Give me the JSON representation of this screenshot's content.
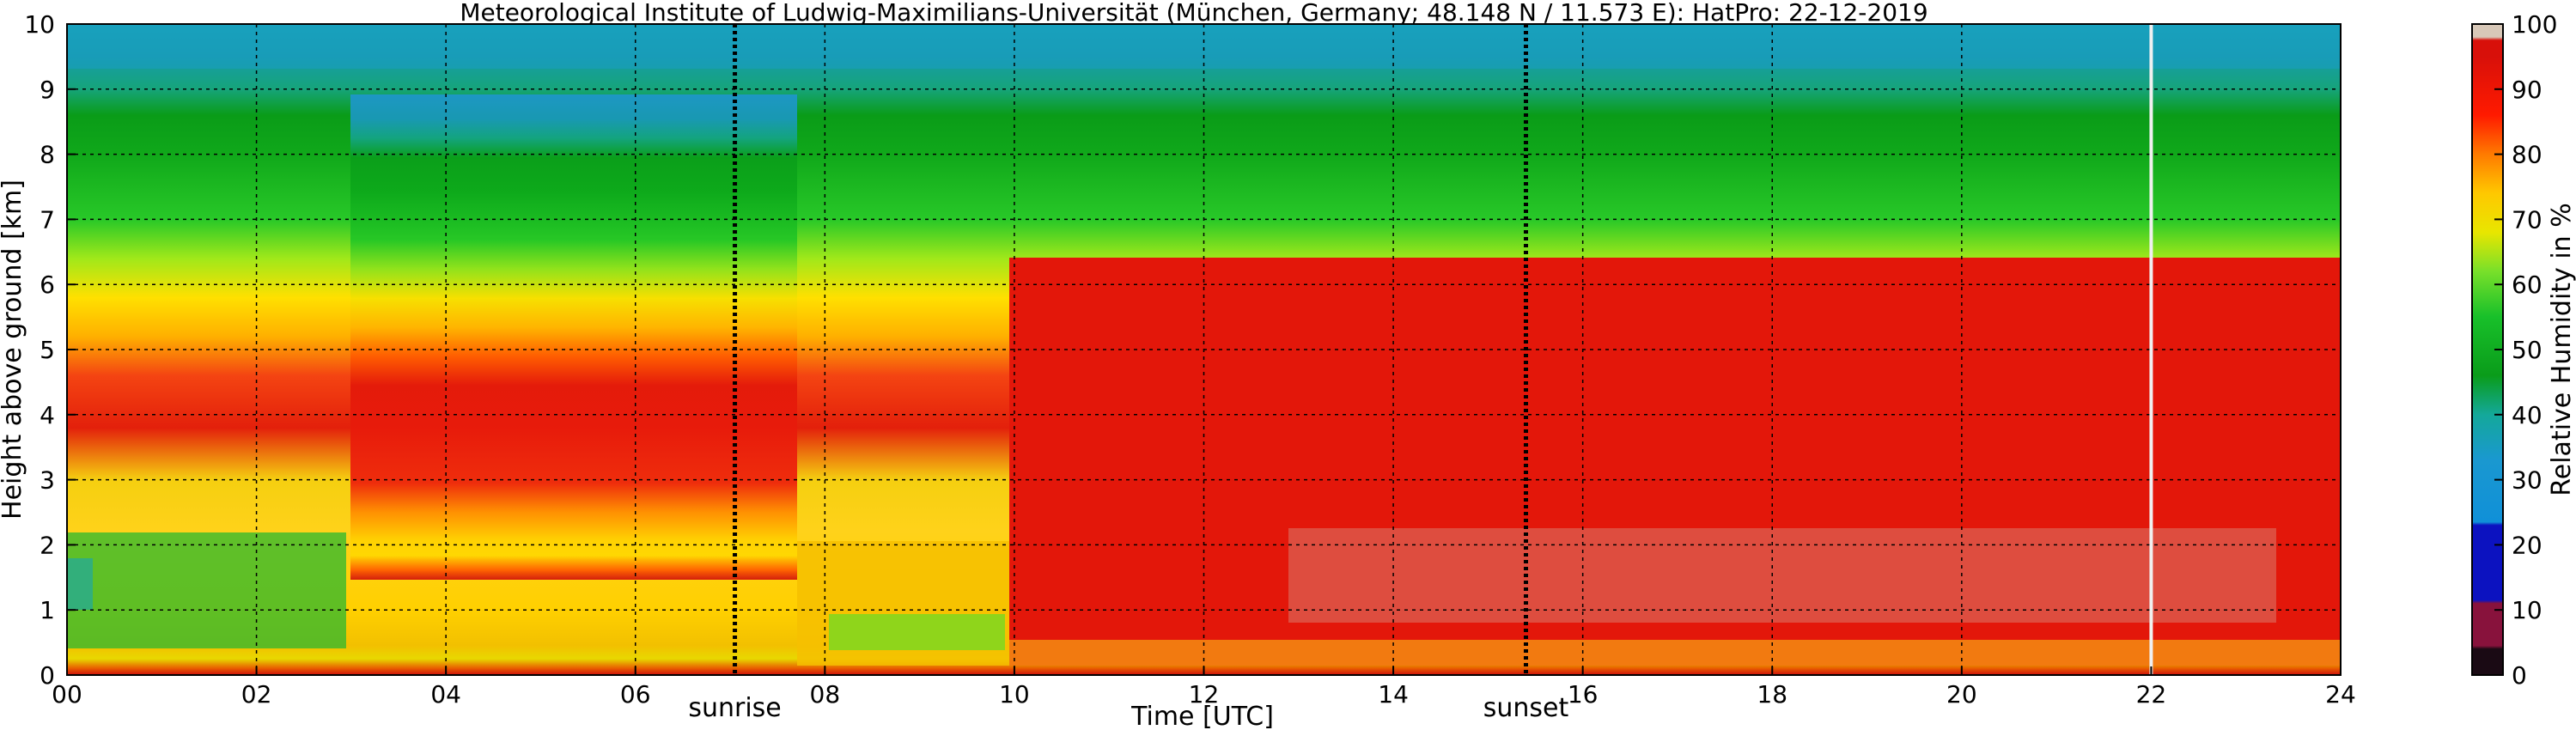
{
  "chart_data": {
    "type": "heatmap",
    "title": "Meteorological Institute of Ludwig-Maximilians-Universität (München, Germany; 48.148 N / 11.573 E):    HatPro: 22-12-2019",
    "xlabel": "Time [UTC]",
    "ylabel": "Height above ground [km]",
    "xlim": [
      0,
      24
    ],
    "ylim": [
      0,
      10
    ],
    "x_ticks": [
      "00",
      "02",
      "04",
      "06",
      "08",
      "10",
      "12",
      "14",
      "16",
      "18",
      "20",
      "22",
      "24"
    ],
    "y_ticks": [
      "0",
      "1",
      "2",
      "3",
      "4",
      "5",
      "6",
      "7",
      "8",
      "9",
      "10"
    ],
    "grid": true,
    "annotations": [
      {
        "label": "sunrise",
        "x": 7.05
      },
      {
        "label": "sunset",
        "x": 15.4
      }
    ],
    "colorbar": {
      "label": "Relative Humidity in %",
      "range": [
        0,
        100
      ],
      "ticks": [
        "0",
        "10",
        "20",
        "30",
        "40",
        "50",
        "60",
        "70",
        "80",
        "90",
        "100"
      ]
    }
  }
}
